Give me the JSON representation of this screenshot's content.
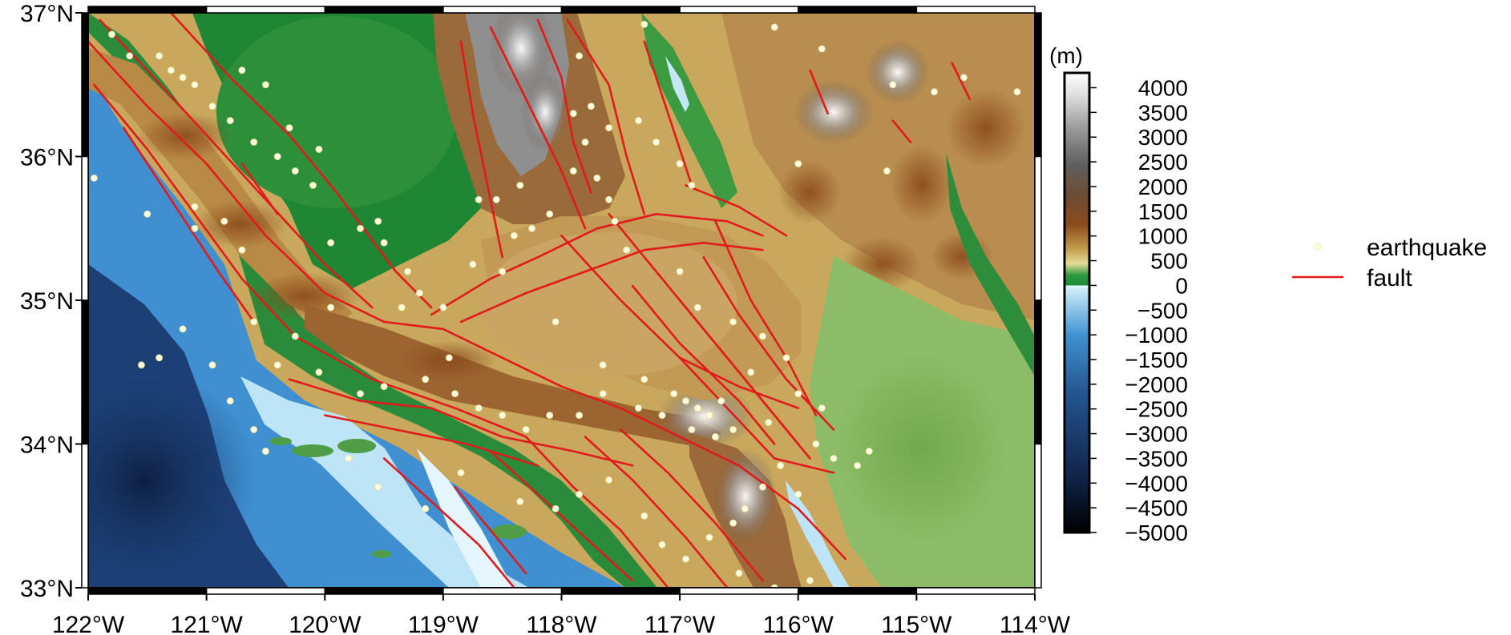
{
  "map": {
    "lon_range": [
      -122,
      -114
    ],
    "lat_range": [
      33,
      37
    ],
    "x_ticks": [
      {
        "lon": -122,
        "label": "122°W"
      },
      {
        "lon": -121,
        "label": "121°W"
      },
      {
        "lon": -120,
        "label": "120°W"
      },
      {
        "lon": -119,
        "label": "119°W"
      },
      {
        "lon": -118,
        "label": "118°W"
      },
      {
        "lon": -117,
        "label": "117°W"
      },
      {
        "lon": -116,
        "label": "116°W"
      },
      {
        "lon": -115,
        "label": "115°W"
      },
      {
        "lon": -114,
        "label": "114°W"
      }
    ],
    "y_ticks": [
      {
        "lat": 37,
        "label": "37°N"
      },
      {
        "lat": 36,
        "label": "36°N"
      },
      {
        "lat": 35,
        "label": "35°N"
      },
      {
        "lat": 34,
        "label": "34°N"
      },
      {
        "lat": 33,
        "label": "33°N"
      }
    ],
    "colors": {
      "fault": "#e31a1c",
      "earthquake": "#fffde0",
      "deep_ocean": "#0c1f3f",
      "ocean": "#3d8fd1",
      "shallow": "#bfe6f7",
      "lowland": "#1e8a33",
      "foothill": "#c9b56a",
      "mountain": "#8a4a1c",
      "peak": "#ffffff"
    },
    "earthquakes": [
      [
        -121.8,
        36.85
      ],
      [
        -121.65,
        36.7
      ],
      [
        -121.4,
        36.7
      ],
      [
        -121.3,
        36.6
      ],
      [
        -121.2,
        36.55
      ],
      [
        -121.1,
        36.5
      ],
      [
        -120.95,
        36.35
      ],
      [
        -120.8,
        36.25
      ],
      [
        -120.6,
        36.1
      ],
      [
        -120.4,
        36.0
      ],
      [
        -120.25,
        35.9
      ],
      [
        -120.1,
        35.8
      ],
      [
        -120.7,
        36.6
      ],
      [
        -120.5,
        36.5
      ],
      [
        -120.3,
        36.2
      ],
      [
        -120.05,
        36.05
      ],
      [
        -121.95,
        35.85
      ],
      [
        -121.5,
        35.6
      ],
      [
        -121.1,
        35.65
      ],
      [
        -120.85,
        35.55
      ],
      [
        -121.1,
        35.5
      ],
      [
        -120.7,
        35.35
      ],
      [
        -119.95,
        35.4
      ],
      [
        -119.7,
        35.5
      ],
      [
        -119.5,
        35.4
      ],
      [
        -119.3,
        35.2
      ],
      [
        -119.2,
        35.05
      ],
      [
        -119.35,
        34.95
      ],
      [
        -119.0,
        34.95
      ],
      [
        -118.75,
        35.25
      ],
      [
        -118.5,
        35.2
      ],
      [
        -118.4,
        35.45
      ],
      [
        -118.25,
        35.5
      ],
      [
        -118.55,
        35.7
      ],
      [
        -118.35,
        35.8
      ],
      [
        -118.1,
        35.6
      ],
      [
        -117.9,
        35.9
      ],
      [
        -117.7,
        35.85
      ],
      [
        -117.6,
        35.7
      ],
      [
        -117.55,
        35.55
      ],
      [
        -117.8,
        36.1
      ],
      [
        -117.9,
        36.3
      ],
      [
        -117.75,
        36.35
      ],
      [
        -117.6,
        36.2
      ],
      [
        -117.35,
        36.25
      ],
      [
        -117.2,
        36.1
      ],
      [
        -117.0,
        35.95
      ],
      [
        -116.9,
        35.8
      ],
      [
        -117.45,
        35.35
      ],
      [
        -117.0,
        35.2
      ],
      [
        -116.85,
        34.95
      ],
      [
        -116.55,
        34.85
      ],
      [
        -116.3,
        34.75
      ],
      [
        -116.4,
        34.5
      ],
      [
        -116.1,
        34.6
      ],
      [
        -116.0,
        34.35
      ],
      [
        -115.8,
        34.25
      ],
      [
        -115.7,
        33.9
      ],
      [
        -115.5,
        33.85
      ],
      [
        -115.4,
        33.95
      ],
      [
        -117.05,
        34.35
      ],
      [
        -116.95,
        34.3
      ],
      [
        -116.85,
        34.25
      ],
      [
        -116.75,
        34.2
      ],
      [
        -116.65,
        34.3
      ],
      [
        -116.55,
        34.1
      ],
      [
        -116.7,
        34.05
      ],
      [
        -116.9,
        34.1
      ],
      [
        -117.15,
        34.2
      ],
      [
        -117.35,
        34.25
      ],
      [
        -117.65,
        34.35
      ],
      [
        -117.85,
        34.2
      ],
      [
        -118.1,
        34.2
      ],
      [
        -118.3,
        34.1
      ],
      [
        -118.5,
        34.2
      ],
      [
        -118.7,
        34.25
      ],
      [
        -118.9,
        34.35
      ],
      [
        -119.15,
        34.45
      ],
      [
        -119.5,
        34.4
      ],
      [
        -119.7,
        34.35
      ],
      [
        -120.05,
        34.5
      ],
      [
        -120.4,
        34.55
      ],
      [
        -120.6,
        34.85
      ],
      [
        -120.95,
        34.55
      ],
      [
        -121.2,
        34.8
      ],
      [
        -121.4,
        34.6
      ],
      [
        -121.55,
        34.55
      ],
      [
        -120.8,
        34.3
      ],
      [
        -120.6,
        34.1
      ],
      [
        -120.5,
        33.95
      ],
      [
        -119.8,
        33.9
      ],
      [
        -119.55,
        33.7
      ],
      [
        -119.15,
        33.55
      ],
      [
        -118.85,
        33.8
      ],
      [
        -118.35,
        33.6
      ],
      [
        -118.05,
        33.55
      ],
      [
        -117.85,
        33.65
      ],
      [
        -117.6,
        33.75
      ],
      [
        -117.3,
        33.5
      ],
      [
        -117.15,
        33.3
      ],
      [
        -116.95,
        33.2
      ],
      [
        -116.75,
        33.35
      ],
      [
        -116.55,
        33.45
      ],
      [
        -116.45,
        33.55
      ],
      [
        -116.3,
        33.7
      ],
      [
        -116.15,
        33.85
      ],
      [
        -116.0,
        33.65
      ],
      [
        -116.5,
        33.1
      ],
      [
        -116.2,
        33.0
      ],
      [
        -115.9,
        33.05
      ],
      [
        -116.0,
        35.95
      ],
      [
        -115.25,
        35.9
      ],
      [
        -114.85,
        36.45
      ],
      [
        -114.6,
        36.55
      ],
      [
        -114.15,
        36.45
      ],
      [
        -115.2,
        36.5
      ],
      [
        -116.2,
        36.9
      ],
      [
        -115.8,
        36.75
      ],
      [
        -117.3,
        36.92
      ],
      [
        -117.85,
        36.7
      ],
      [
        -118.7,
        35.7
      ],
      [
        -119.55,
        35.55
      ],
      [
        -120.25,
        34.75
      ],
      [
        -119.95,
        34.95
      ],
      [
        -118.05,
        34.85
      ],
      [
        -117.65,
        34.55
      ],
      [
        -117.3,
        34.45
      ],
      [
        -116.25,
        34.15
      ],
      [
        -115.85,
        34.0
      ],
      [
        -118.95,
        34.6
      ]
    ],
    "faults": [
      [
        [
          -122.0,
          36.8
        ],
        [
          -121.5,
          36.35
        ],
        [
          -121.0,
          35.95
        ],
        [
          -120.5,
          35.45
        ],
        [
          -120.0,
          35.05
        ],
        [
          -119.5,
          34.85
        ],
        [
          -119.0,
          34.8
        ],
        [
          -118.5,
          34.6
        ],
        [
          -118.0,
          34.4
        ],
        [
          -117.5,
          34.25
        ],
        [
          -117.0,
          34.05
        ],
        [
          -116.5,
          33.85
        ],
        [
          -116.0,
          33.55
        ],
        [
          -115.6,
          33.2
        ]
      ],
      [
        [
          -121.9,
          36.95
        ],
        [
          -121.5,
          36.6
        ],
        [
          -121.0,
          36.15
        ],
        [
          -120.5,
          35.7
        ],
        [
          -120.0,
          35.25
        ],
        [
          -119.6,
          34.95
        ]
      ],
      [
        [
          -121.3,
          37.0
        ],
        [
          -120.8,
          36.55
        ],
        [
          -120.3,
          36.15
        ],
        [
          -119.9,
          35.75
        ],
        [
          -119.4,
          35.2
        ],
        [
          -119.1,
          34.95
        ]
      ],
      [
        [
          -121.95,
          36.5
        ],
        [
          -121.5,
          36.05
        ],
        [
          -121.1,
          35.6
        ],
        [
          -120.7,
          35.15
        ],
        [
          -120.25,
          34.75
        ],
        [
          -119.6,
          34.45
        ],
        [
          -118.9,
          34.25
        ],
        [
          -118.3,
          34.05
        ]
      ],
      [
        [
          -121.7,
          36.2
        ],
        [
          -121.3,
          35.7
        ],
        [
          -120.9,
          35.2
        ],
        [
          -120.6,
          34.85
        ]
      ],
      [
        [
          -119.1,
          34.9
        ],
        [
          -118.6,
          35.15
        ],
        [
          -118.2,
          35.3
        ],
        [
          -117.7,
          35.5
        ],
        [
          -117.2,
          35.6
        ],
        [
          -116.6,
          35.55
        ],
        [
          -116.3,
          35.45
        ]
      ],
      [
        [
          -118.85,
          34.85
        ],
        [
          -118.3,
          35.05
        ],
        [
          -117.8,
          35.2
        ],
        [
          -117.3,
          35.35
        ],
        [
          -116.8,
          35.4
        ],
        [
          -116.3,
          35.35
        ]
      ],
      [
        [
          -117.6,
          35.6
        ],
        [
          -117.2,
          35.2
        ],
        [
          -116.8,
          34.8
        ],
        [
          -116.4,
          34.4
        ],
        [
          -116.0,
          34.0
        ]
      ],
      [
        [
          -117.4,
          35.1
        ],
        [
          -117.0,
          34.7
        ],
        [
          -116.5,
          34.3
        ],
        [
          -116.2,
          34.0
        ]
      ],
      [
        [
          -117.0,
          35.0
        ],
        [
          -116.6,
          34.6
        ],
        [
          -116.2,
          34.2
        ],
        [
          -115.9,
          33.9
        ]
      ],
      [
        [
          -116.8,
          35.3
        ],
        [
          -116.5,
          34.9
        ],
        [
          -116.1,
          34.45
        ],
        [
          -115.7,
          34.1
        ]
      ],
      [
        [
          -118.6,
          36.9
        ],
        [
          -118.3,
          36.4
        ],
        [
          -118.0,
          35.9
        ],
        [
          -117.8,
          35.5
        ]
      ],
      [
        [
          -118.2,
          36.95
        ],
        [
          -118.0,
          36.55
        ],
        [
          -117.9,
          36.1
        ],
        [
          -117.75,
          35.75
        ]
      ],
      [
        [
          -117.95,
          36.95
        ],
        [
          -117.6,
          36.5
        ],
        [
          -117.45,
          36.0
        ],
        [
          -117.3,
          35.6
        ]
      ],
      [
        [
          -117.3,
          36.8
        ],
        [
          -117.1,
          36.3
        ],
        [
          -116.9,
          35.8
        ]
      ],
      [
        [
          -118.85,
          36.8
        ],
        [
          -118.75,
          36.3
        ],
        [
          -118.6,
          35.7
        ],
        [
          -118.5,
          35.3
        ]
      ],
      [
        [
          -120.3,
          34.45
        ],
        [
          -119.7,
          34.3
        ],
        [
          -119.1,
          34.25
        ],
        [
          -118.5,
          34.05
        ],
        [
          -117.9,
          33.95
        ],
        [
          -117.4,
          33.85
        ]
      ],
      [
        [
          -120.0,
          34.2
        ],
        [
          -119.4,
          34.1
        ],
        [
          -118.8,
          34.0
        ],
        [
          -118.2,
          33.85
        ]
      ],
      [
        [
          -118.6,
          33.95
        ],
        [
          -118.2,
          33.65
        ],
        [
          -117.8,
          33.35
        ],
        [
          -117.4,
          33.05
        ]
      ],
      [
        [
          -118.3,
          34.05
        ],
        [
          -117.9,
          33.7
        ],
        [
          -117.5,
          33.4
        ],
        [
          -117.1,
          33.0
        ]
      ],
      [
        [
          -117.8,
          34.05
        ],
        [
          -117.4,
          33.75
        ],
        [
          -116.95,
          33.35
        ],
        [
          -116.6,
          33.0
        ]
      ],
      [
        [
          -117.5,
          34.1
        ],
        [
          -117.1,
          33.8
        ],
        [
          -116.7,
          33.45
        ],
        [
          -116.3,
          33.05
        ]
      ],
      [
        [
          -119.5,
          33.9
        ],
        [
          -119.1,
          33.6
        ],
        [
          -118.7,
          33.3
        ],
        [
          -118.4,
          33.0
        ]
      ],
      [
        [
          -118.9,
          33.7
        ],
        [
          -118.6,
          33.4
        ],
        [
          -118.3,
          33.1
        ]
      ],
      [
        [
          -117.0,
          34.6
        ],
        [
          -116.6,
          34.25
        ],
        [
          -116.2,
          33.9
        ],
        [
          -115.7,
          33.8
        ]
      ],
      [
        [
          -118.0,
          35.45
        ],
        [
          -117.5,
          35.0
        ],
        [
          -117.0,
          34.6
        ],
        [
          -116.5,
          34.4
        ],
        [
          -116.0,
          34.25
        ]
      ],
      [
        [
          -116.7,
          35.55
        ],
        [
          -116.4,
          35.0
        ],
        [
          -116.1,
          34.6
        ],
        [
          -115.85,
          34.2
        ]
      ],
      [
        [
          -116.95,
          35.8
        ],
        [
          -116.5,
          35.65
        ],
        [
          -116.1,
          35.45
        ]
      ],
      [
        [
          -115.9,
          36.6
        ],
        [
          -115.75,
          36.3
        ]
      ],
      [
        [
          -115.2,
          36.25
        ],
        [
          -115.05,
          36.1
        ]
      ],
      [
        [
          -114.7,
          36.65
        ],
        [
          -114.55,
          36.4
        ]
      ],
      [
        [
          -120.7,
          35.95
        ],
        [
          -120.4,
          35.6
        ]
      ]
    ]
  },
  "colorbar": {
    "unit": "(m)",
    "min": -5000,
    "max": 4300,
    "labels": [
      {
        "value": 4000,
        "label": "4000"
      },
      {
        "value": 3500,
        "label": "3500"
      },
      {
        "value": 3000,
        "label": "3000"
      },
      {
        "value": 2500,
        "label": "2500"
      },
      {
        "value": 2000,
        "label": "2000"
      },
      {
        "value": 1500,
        "label": "1500"
      },
      {
        "value": 1000,
        "label": "1000"
      },
      {
        "value": 500,
        "label": "500"
      },
      {
        "value": 0,
        "label": "0"
      },
      {
        "value": -500,
        "label": "−500"
      },
      {
        "value": -1000,
        "label": "−1000"
      },
      {
        "value": -1500,
        "label": "−1500"
      },
      {
        "value": -2000,
        "label": "−2000"
      },
      {
        "value": -2500,
        "label": "−2500"
      },
      {
        "value": -3000,
        "label": "−3000"
      },
      {
        "value": -3500,
        "label": "−3500"
      },
      {
        "value": -4000,
        "label": "−4000"
      },
      {
        "value": -4500,
        "label": "−4500"
      },
      {
        "value": -5000,
        "label": "−5000"
      }
    ]
  },
  "legend": {
    "earthquake_label": "earthquake",
    "fault_label": "fault"
  }
}
